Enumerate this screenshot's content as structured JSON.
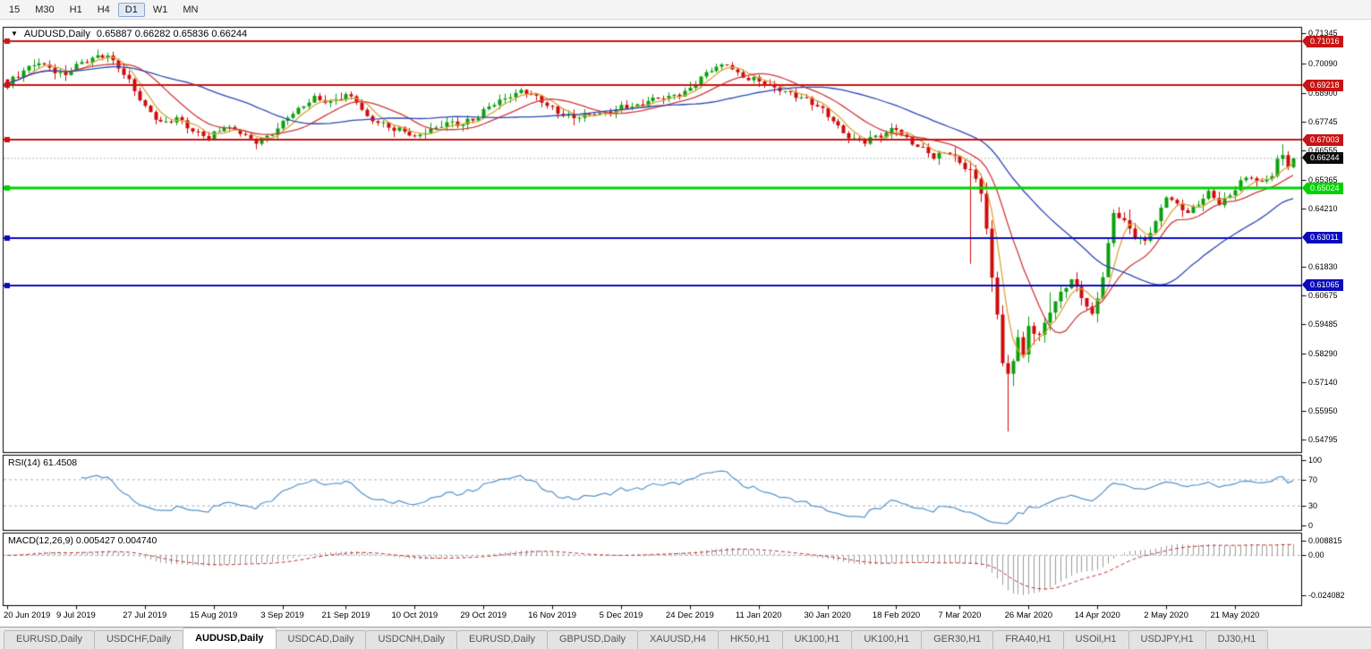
{
  "toolbar": {
    "timeframes": [
      "15",
      "M30",
      "H1",
      "H4",
      "D1",
      "W1",
      "MN"
    ],
    "active": "D1"
  },
  "icons": {
    "dropdown": "▼"
  },
  "chart": {
    "symbol_label": "AUDUSD,Daily",
    "ohlc_text": "0.65887 0.66282 0.65836 0.66244"
  },
  "rsi": {
    "label": "RSI(14) 61.4508",
    "ticks": [
      "100",
      "70",
      "30",
      "0"
    ]
  },
  "macd": {
    "label": "MACD(12,26,9) 0.005427 0.004740",
    "ticks": [
      "0.008815",
      "0.00",
      "-0.024082"
    ]
  },
  "price_axis": {
    "ticks": [
      "0.71345",
      "0.70090",
      "0.68900",
      "0.67745",
      "0.66555",
      "0.65365",
      "0.64210",
      "0.61830",
      "0.60675",
      "0.59485",
      "0.58290",
      "0.57140",
      "0.55950",
      "0.54795"
    ],
    "current": {
      "label": "0.66244",
      "value": 0.66244,
      "bg": "#0a0a0a"
    },
    "levels": [
      {
        "value": 0.71016,
        "label": "0.71016",
        "color": "#c81414",
        "width": 2
      },
      {
        "value": 0.69218,
        "label": "0.69218",
        "color": "#c81414",
        "width": 2
      },
      {
        "value": 0.67003,
        "label": "0.67003",
        "color": "#c81414",
        "width": 2
      },
      {
        "value": 0.65024,
        "label": "0.65024",
        "color": "#00d300",
        "width": 3
      },
      {
        "value": 0.63011,
        "label": "0.63011",
        "color": "#0b0bbd",
        "width": 2
      },
      {
        "value": 0.61065,
        "label": "0.61065",
        "color": "#0b0bbd",
        "width": 2
      }
    ]
  },
  "colors": {
    "up": "#0ca00c",
    "down": "#cf0a0a",
    "rsi": "#5793c9",
    "macd_hist": "#9c9c9c",
    "macd_signal": "#c23131"
  },
  "chart_data": {
    "type": "candlestick",
    "symbol": "AUDUSD",
    "timeframe": "Daily",
    "title": "AUDUSD,Daily",
    "last_ohlc_display": {
      "open": "0.65887",
      "high": "0.66282",
      "low": "0.65836",
      "close": "0.66244"
    },
    "n_candles": 244,
    "y_range": [
      0.54283,
      0.716
    ],
    "x_labels": [
      "20 Jun 2019",
      "9 Jul 2019",
      "27 Jul 2019",
      "15 Aug 2019",
      "3 Sep 2019",
      "21 Sep 2019",
      "10 Oct 2019",
      "29 Oct 2019",
      "16 Nov 2019",
      "5 Dec 2019",
      "24 Dec 2019",
      "11 Jan 2020",
      "30 Jan 2020",
      "18 Feb 2020",
      "7 Mar 2020",
      "26 Mar 2020",
      "14 Apr 2020",
      "2 May 2020",
      "21 May 2020"
    ],
    "price_anchors": [
      [
        0,
        0.692
      ],
      [
        3,
        0.6985
      ],
      [
        6,
        0.702
      ],
      [
        9,
        0.6975
      ],
      [
        11,
        0.6958
      ],
      [
        13,
        0.7008
      ],
      [
        16,
        0.7035
      ],
      [
        19,
        0.7042
      ],
      [
        21,
        0.699
      ],
      [
        23,
        0.6935
      ],
      [
        26,
        0.6838
      ],
      [
        29,
        0.6768
      ],
      [
        32,
        0.6782
      ],
      [
        35,
        0.6738
      ],
      [
        38,
        0.6716
      ],
      [
        41,
        0.675
      ],
      [
        44,
        0.6722
      ],
      [
        47,
        0.6697
      ],
      [
        50,
        0.673
      ],
      [
        52,
        0.6772
      ],
      [
        55,
        0.6818
      ],
      [
        58,
        0.6872
      ],
      [
        61,
        0.6858
      ],
      [
        64,
        0.688
      ],
      [
        66,
        0.6852
      ],
      [
        68,
        0.6792
      ],
      [
        71,
        0.6766
      ],
      [
        74,
        0.6738
      ],
      [
        77,
        0.6703
      ],
      [
        80,
        0.6745
      ],
      [
        83,
        0.6772
      ],
      [
        86,
        0.6757
      ],
      [
        89,
        0.6792
      ],
      [
        91,
        0.684
      ],
      [
        94,
        0.6875
      ],
      [
        97,
        0.6895
      ],
      [
        100,
        0.6868
      ],
      [
        104,
        0.6818
      ],
      [
        107,
        0.6788
      ],
      [
        110,
        0.6798
      ],
      [
        113,
        0.6812
      ],
      [
        116,
        0.6838
      ],
      [
        119,
        0.683
      ],
      [
        122,
        0.6862
      ],
      [
        125,
        0.688
      ],
      [
        128,
        0.6898
      ],
      [
        130,
        0.6925
      ],
      [
        133,
        0.6982
      ],
      [
        136,
        0.7012
      ],
      [
        139,
        0.6958
      ],
      [
        142,
        0.6932
      ],
      [
        145,
        0.6908
      ],
      [
        148,
        0.6898
      ],
      [
        151,
        0.6862
      ],
      [
        154,
        0.682
      ],
      [
        156,
        0.6775
      ],
      [
        159,
        0.6716
      ],
      [
        162,
        0.6692
      ],
      [
        165,
        0.6716
      ],
      [
        168,
        0.6748
      ],
      [
        170,
        0.6712
      ],
      [
        172,
        0.6678
      ],
      [
        175,
        0.6625
      ],
      [
        178,
        0.6648
      ],
      [
        180,
        0.6612
      ],
      [
        182,
        0.6585
      ],
      [
        184,
        0.6488
      ],
      [
        185,
        0.6338
      ],
      [
        186,
        0.6128
      ],
      [
        187,
        0.5985
      ],
      [
        188,
        0.5788
      ],
      [
        189,
        0.5742
      ],
      [
        190,
        0.5802
      ],
      [
        191,
        0.5908
      ],
      [
        192,
        0.5825
      ],
      [
        193,
        0.5948
      ],
      [
        195,
        0.5898
      ],
      [
        197,
        0.5998
      ],
      [
        199,
        0.6068
      ],
      [
        201,
        0.6135
      ],
      [
        203,
        0.6072
      ],
      [
        205,
        0.5985
      ],
      [
        207,
        0.6138
      ],
      [
        209,
        0.6398
      ],
      [
        211,
        0.6362
      ],
      [
        213,
        0.6308
      ],
      [
        215,
        0.6292
      ],
      [
        217,
        0.6368
      ],
      [
        219,
        0.6468
      ],
      [
        221,
        0.6428
      ],
      [
        223,
        0.6408
      ],
      [
        225,
        0.6448
      ],
      [
        227,
        0.6492
      ],
      [
        229,
        0.6438
      ],
      [
        231,
        0.6468
      ],
      [
        233,
        0.6532
      ],
      [
        235,
        0.6552
      ],
      [
        237,
        0.6532
      ],
      [
        239,
        0.656
      ],
      [
        240,
        0.6612
      ],
      [
        241,
        0.664
      ],
      [
        242,
        0.65887
      ],
      [
        243,
        0.66244
      ]
    ],
    "special_wicks": [
      [
        182,
        0.6195
      ],
      [
        189,
        0.5512
      ],
      [
        241,
        0.6682
      ]
    ],
    "last_candle": {
      "open": 0.65887,
      "high": 0.66282,
      "low": 0.65836,
      "close": 0.66244
    },
    "ma": [
      {
        "period": 5,
        "color": "#dca43e"
      },
      {
        "period": 13,
        "color": "#cf3b3b"
      },
      {
        "period": 34,
        "color": "#2c49b4"
      }
    ],
    "rsi_period": 14,
    "rsi_levels": [
      70,
      30
    ],
    "rsi_value": 61.4508,
    "macd": {
      "fast": 12,
      "slow": 26,
      "signal_period": 9,
      "value": 0.005427,
      "signal": 0.00474,
      "range": [
        -0.024082,
        0.008815
      ]
    },
    "support_resistance": [
      0.71016,
      0.69218,
      0.67003,
      0.65024,
      0.63011,
      0.61065
    ]
  },
  "tabbar": {
    "tabs": [
      "EURUSD,Daily",
      "USDCHF,Daily",
      "AUDUSD,Daily",
      "USDCAD,Daily",
      "USDCNH,Daily",
      "EURUSD,Daily",
      "GBPUSD,Daily",
      "XAUUSD,H4",
      "HK50,H1",
      "UK100,H1",
      "UK100,H1",
      "GER30,H1",
      "FRA40,H1",
      "USOil,H1",
      "USDJPY,H1",
      "DJ30,H1"
    ],
    "active_index": 2
  }
}
